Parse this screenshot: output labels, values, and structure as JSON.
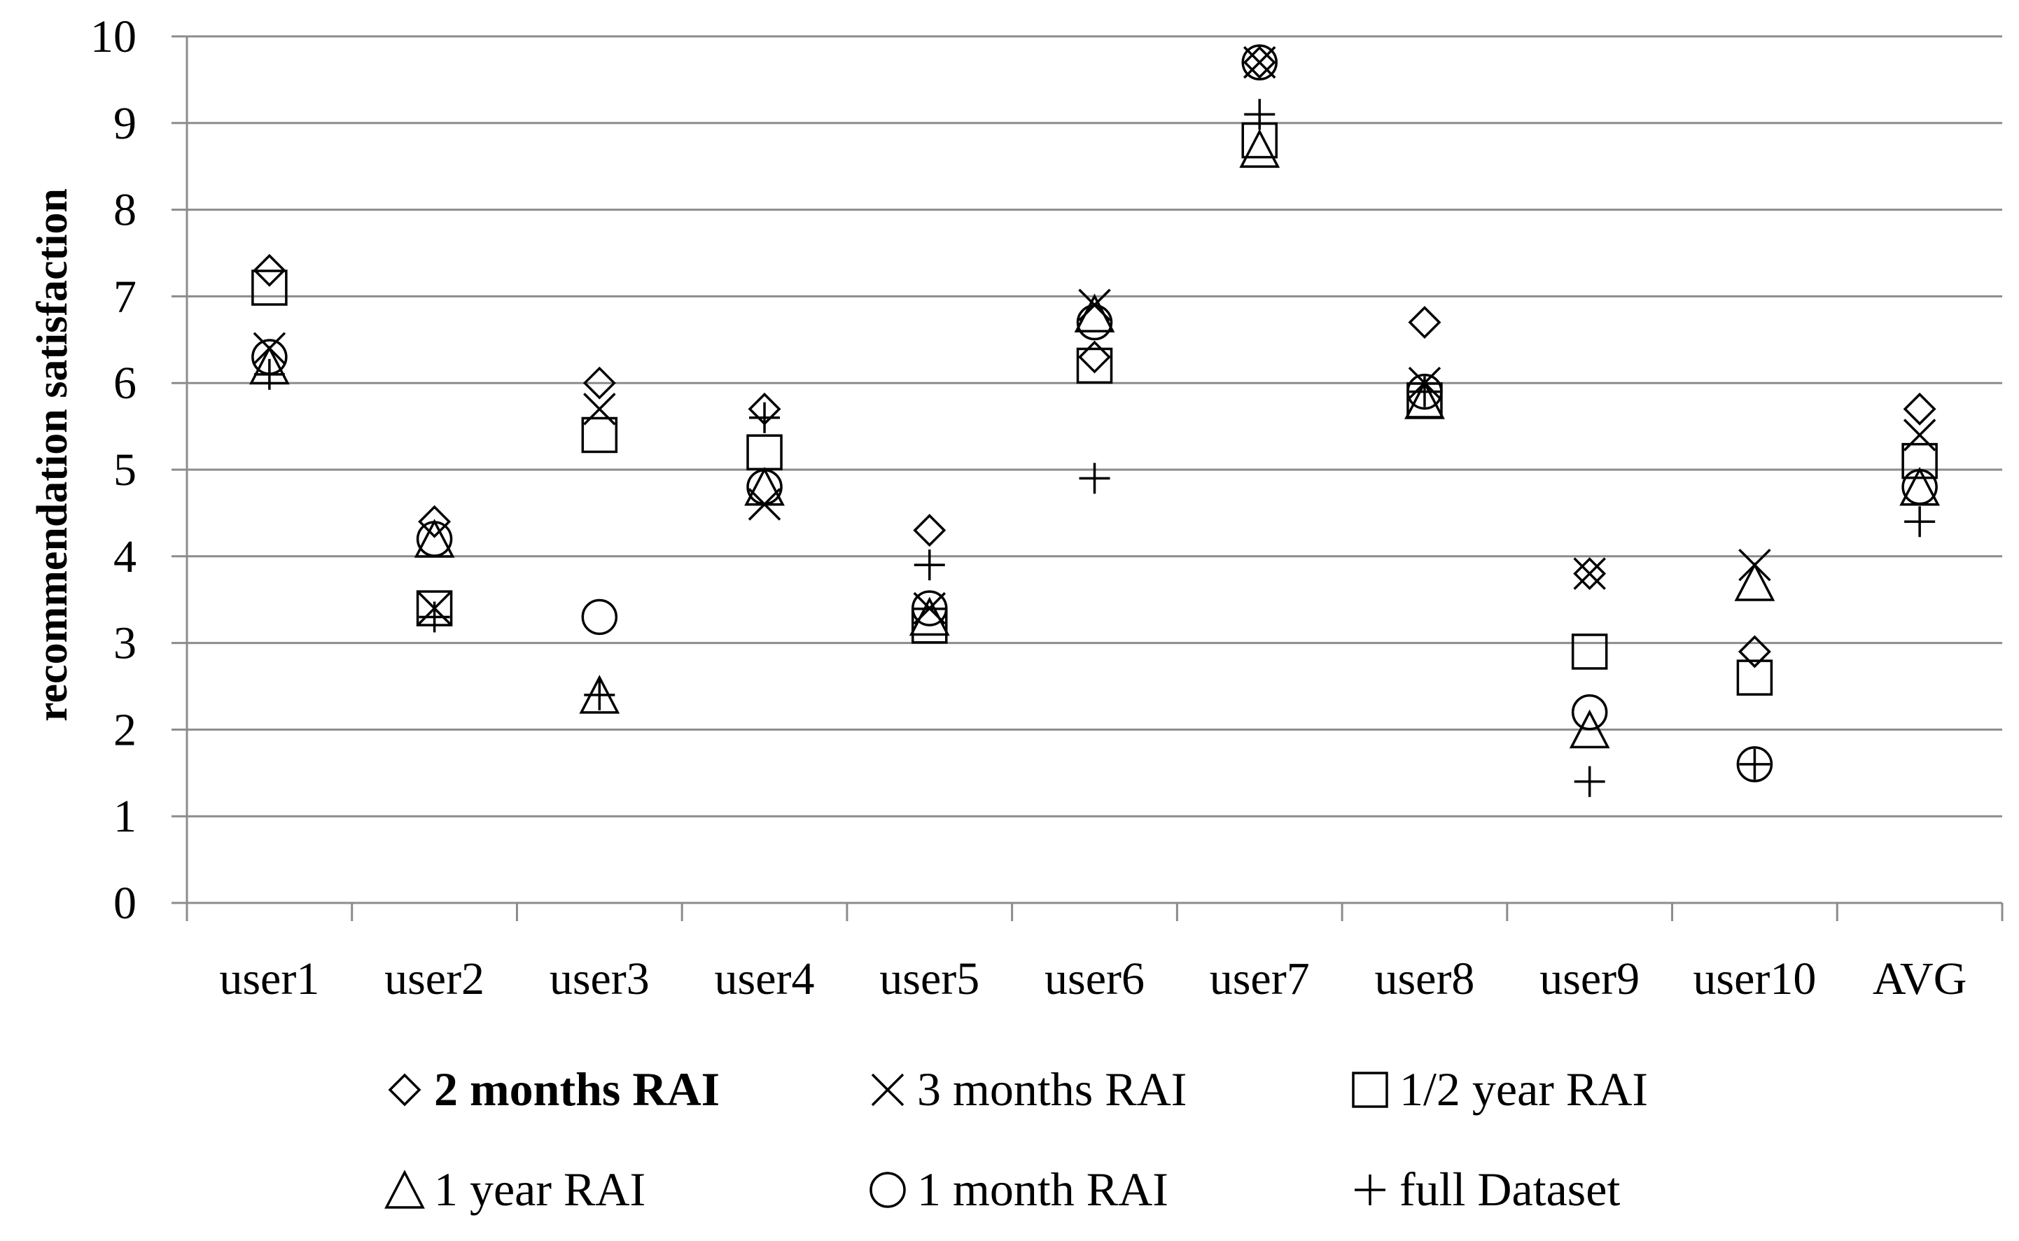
{
  "chart_data": {
    "type": "scatter",
    "title": "",
    "xlabel": "",
    "ylabel": "recommendation satisfaction",
    "ylim": [
      0,
      10
    ],
    "yticks": [
      "0",
      "1",
      "2",
      "3",
      "4",
      "5",
      "6",
      "7",
      "8",
      "9",
      "10"
    ],
    "grid": true,
    "legend_position": "bottom",
    "categories": [
      "user1",
      "user2",
      "user3",
      "user4",
      "user5",
      "user6",
      "user7",
      "user8",
      "user9",
      "user10",
      "AVG"
    ],
    "series": [
      {
        "name": "2 months RAI",
        "marker": "diamond",
        "bold_label": true,
        "values": [
          7.3,
          4.4,
          6.0,
          5.7,
          4.3,
          6.3,
          9.7,
          6.7,
          3.8,
          2.9,
          5.7
        ]
      },
      {
        "name": "3 months RAI",
        "marker": "x",
        "bold_label": false,
        "values": [
          6.4,
          3.4,
          5.7,
          4.6,
          3.4,
          6.9,
          9.7,
          6.0,
          3.8,
          3.9,
          5.4
        ]
      },
      {
        "name": "1/2 year RAI",
        "marker": "square",
        "bold_label": false,
        "values": [
          7.1,
          3.4,
          5.4,
          5.2,
          3.2,
          6.2,
          8.8,
          5.8,
          2.9,
          2.6,
          5.1
        ]
      },
      {
        "name": "1 year RAI",
        "marker": "triangle",
        "bold_label": false,
        "values": [
          6.2,
          4.2,
          2.4,
          4.8,
          3.3,
          6.8,
          8.7,
          5.8,
          2.0,
          3.7,
          4.8
        ]
      },
      {
        "name": "1 month RAI",
        "marker": "circle",
        "bold_label": false,
        "values": [
          6.3,
          4.2,
          3.3,
          4.8,
          3.4,
          6.7,
          9.7,
          5.9,
          2.2,
          1.6,
          4.8
        ]
      },
      {
        "name": "full Dataset",
        "marker": "plus",
        "bold_label": false,
        "values": [
          6.1,
          3.3,
          2.4,
          5.6,
          3.9,
          4.9,
          9.1,
          5.9,
          1.4,
          1.6,
          4.4
        ]
      }
    ]
  }
}
